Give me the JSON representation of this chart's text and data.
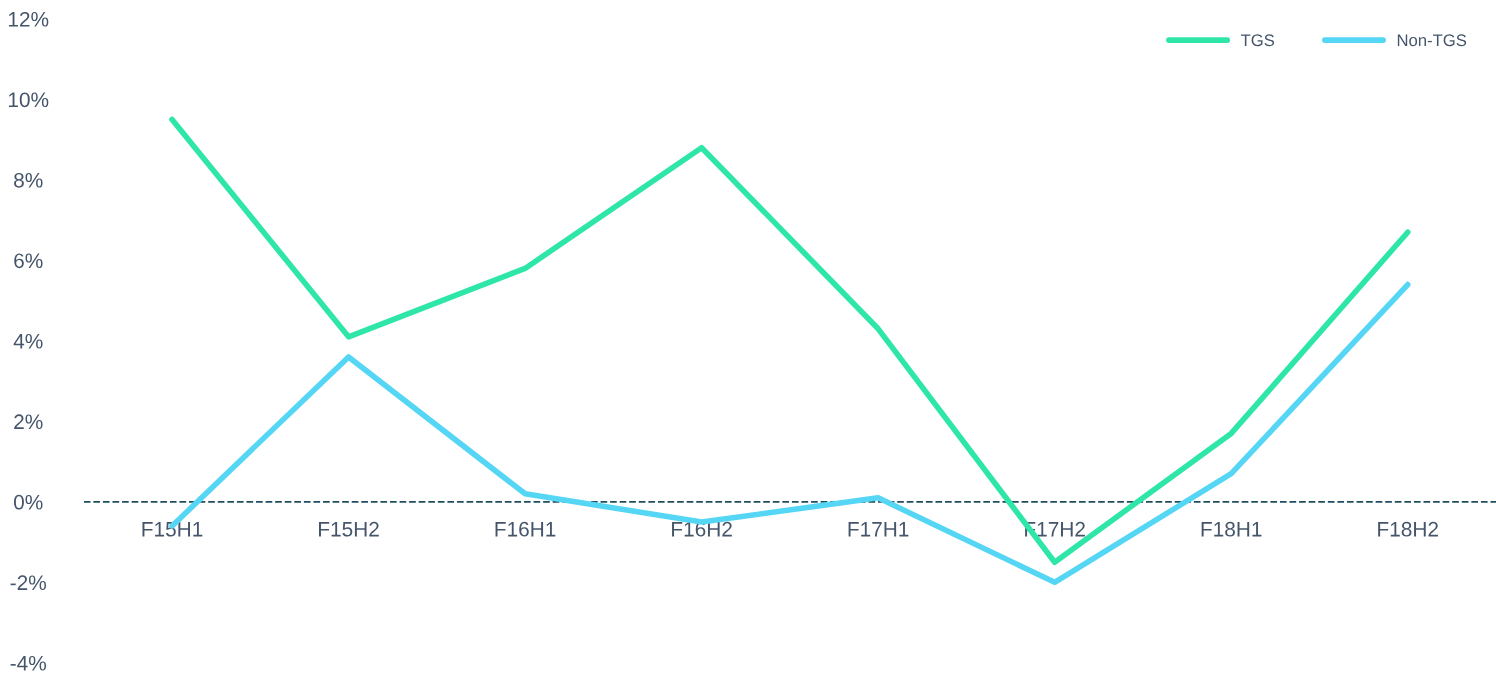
{
  "chart_data": {
    "type": "line",
    "categories": [
      "F15H1",
      "F15H2",
      "F16H1",
      "F16H2",
      "F17H1",
      "F17H2",
      "F18H1",
      "F18H2"
    ],
    "series": [
      {
        "name": "TGS",
        "color": "#2ee6a8",
        "values": [
          9.5,
          4.1,
          5.8,
          8.8,
          4.3,
          -1.5,
          1.7,
          6.7
        ]
      },
      {
        "name": "Non-TGS",
        "color": "#55d6f5",
        "values": [
          -0.6,
          3.6,
          0.2,
          -0.5,
          0.1,
          -2.0,
          0.7,
          5.4
        ]
      }
    ],
    "ylim": [
      -4,
      12
    ],
    "yticks": [
      {
        "value": -4,
        "label": "-4%"
      },
      {
        "value": -2,
        "label": "-2%"
      },
      {
        "value": 0,
        "label": "0%"
      },
      {
        "value": 2,
        "label": "2%"
      },
      {
        "value": 4,
        "label": "4%"
      },
      {
        "value": 6,
        "label": "6%"
      },
      {
        "value": 8,
        "label": "8%"
      },
      {
        "value": 10,
        "label": "10%"
      },
      {
        "value": 12,
        "label": "12%"
      }
    ],
    "ref_lines": [
      {
        "axis": "y",
        "value": 0,
        "color": "#1f4e5f",
        "line_style": "dashed"
      }
    ],
    "grid": false,
    "legend": "top right",
    "marker": "none",
    "line_style": "solid"
  }
}
